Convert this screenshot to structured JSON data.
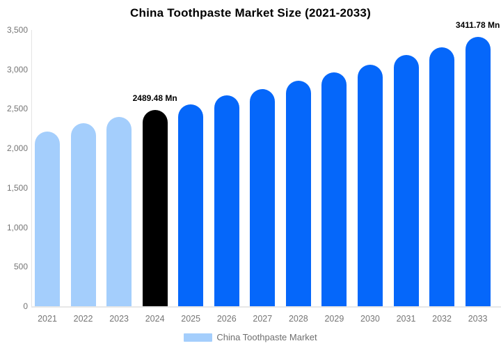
{
  "title": "China Toothpaste Market Size (2021-2033)",
  "legend": {
    "label": "China Toothpaste Market",
    "swatch_color": "#a4cefc"
  },
  "colors": {
    "historical_bar": "#a4cefc",
    "base_year_bar": "#000000",
    "forecast_bar": "#0567fa",
    "axis_line": "#e4e4e4",
    "tick_text": "#757575",
    "legend_text": "#6e6e6e",
    "title_text": "#000000",
    "data_label_text": "#000000"
  },
  "annotations": [
    {
      "category": "2024",
      "index": 3,
      "text": "2489.48 Mn"
    },
    {
      "category": "2033",
      "index": 12,
      "text": "3411.78 Mn"
    }
  ],
  "chart_data": {
    "type": "bar",
    "title": "China Toothpaste Market Size (2021-2033)",
    "series_name": "China Toothpaste Market",
    "unit": "Mn",
    "categories": [
      "2021",
      "2022",
      "2023",
      "2024",
      "2025",
      "2026",
      "2027",
      "2028",
      "2029",
      "2030",
      "2031",
      "2032",
      "2033"
    ],
    "values": [
      2210,
      2315,
      2395,
      2489.48,
      2555,
      2675,
      2750,
      2860,
      2960,
      3060,
      3180,
      3280,
      3411.78
    ],
    "bar_colors": [
      "#a4cefc",
      "#a4cefc",
      "#a4cefc",
      "#000000",
      "#0567fa",
      "#0567fa",
      "#0567fa",
      "#0567fa",
      "#0567fa",
      "#0567fa",
      "#0567fa",
      "#0567fa",
      "#0567fa"
    ],
    "data_labels": {
      "2024": "2489.48 Mn",
      "2033": "3411.78 Mn"
    },
    "xlabel": "",
    "ylabel": "",
    "ylim": [
      0,
      3500
    ],
    "ytick_labels": [
      "0",
      "500",
      "1,000",
      "1,500",
      "2,000",
      "2,500",
      "3,000",
      "3,500"
    ],
    "ytick_values": [
      0,
      500,
      1000,
      1500,
      2000,
      2500,
      3000,
      3500
    ],
    "grid": false,
    "legend_position": "bottom"
  }
}
